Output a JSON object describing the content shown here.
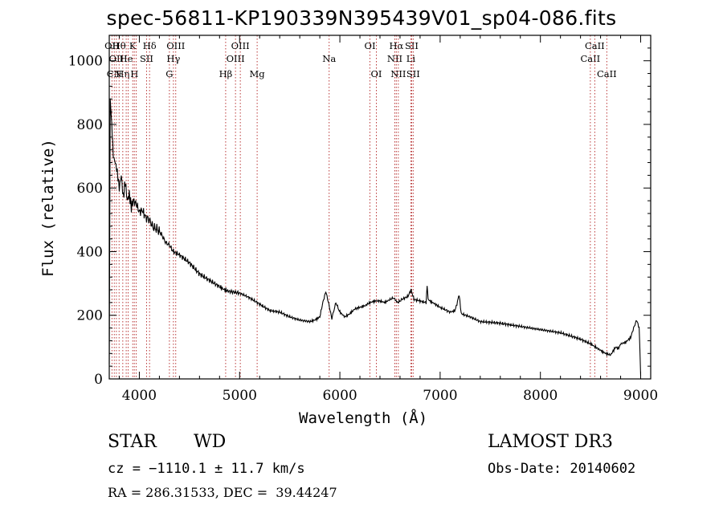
{
  "chart_data": {
    "type": "line",
    "title": "spec-56811-KP190339N395439V01_sp04-086.fits",
    "xlabel": "Wavelength (Å)",
    "ylabel": "Flux (relative)",
    "xlim": [
      3700,
      9100
    ],
    "ylim": [
      0,
      1080
    ],
    "xticks": [
      4000,
      5000,
      6000,
      7000,
      8000,
      9000
    ],
    "yticks": [
      0,
      200,
      400,
      600,
      800,
      1000
    ],
    "series": [
      {
        "name": "spectrum",
        "x": [
          3700,
          3710,
          3720,
          3730,
          3740,
          3760,
          3780,
          3800,
          3820,
          3840,
          3860,
          3880,
          3900,
          3920,
          3940,
          3970,
          4000,
          4030,
          4060,
          4100,
          4140,
          4180,
          4220,
          4260,
          4300,
          4340,
          4400,
          4500,
          4600,
          4700,
          4800,
          4850,
          4900,
          5000,
          5100,
          5200,
          5300,
          5400,
          5500,
          5600,
          5700,
          5750,
          5800,
          5830,
          5860,
          5890,
          5920,
          5960,
          6000,
          6050,
          6100,
          6150,
          6200,
          6250,
          6300,
          6350,
          6400,
          6450,
          6500,
          6540,
          6560,
          6580,
          6620,
          6680,
          6710,
          6740,
          6800,
          6860,
          6870,
          6880,
          6900,
          6950,
          7000,
          7100,
          7150,
          7190,
          7210,
          7300,
          7400,
          7500,
          7600,
          7700,
          7800,
          7900,
          8000,
          8100,
          8200,
          8300,
          8400,
          8500,
          8550,
          8600,
          8650,
          8700,
          8750,
          8780,
          8800,
          8850,
          8900,
          8930,
          8960,
          8985,
          9000
        ],
        "y": [
          50,
          880,
          820,
          760,
          700,
          680,
          650,
          600,
          640,
          570,
          620,
          560,
          580,
          540,
          560,
          550,
          525,
          530,
          510,
          500,
          475,
          470,
          455,
          430,
          420,
          400,
          390,
          365,
          330,
          310,
          290,
          280,
          275,
          270,
          255,
          235,
          215,
          210,
          195,
          185,
          180,
          185,
          195,
          240,
          275,
          235,
          190,
          240,
          210,
          195,
          205,
          220,
          225,
          230,
          240,
          245,
          245,
          240,
          250,
          255,
          245,
          240,
          250,
          260,
          280,
          250,
          245,
          240,
          295,
          250,
          245,
          235,
          225,
          210,
          215,
          265,
          205,
          195,
          180,
          178,
          175,
          170,
          165,
          160,
          155,
          150,
          145,
          135,
          125,
          110,
          100,
          90,
          80,
          75,
          100,
          95,
          110,
          115,
          130,
          160,
          185,
          160,
          10
        ]
      }
    ],
    "line_colors": {
      "spectrum": "#000000",
      "lines": "#b22222"
    },
    "spectral_lines": [
      {
        "wl": 3727,
        "top": "OII",
        "mid": "",
        "low": ""
      },
      {
        "wl": 3750,
        "top": "",
        "mid": "",
        "low": "CN"
      },
      {
        "wl": 3771,
        "top": "",
        "mid": "OII",
        "low": ""
      },
      {
        "wl": 3798,
        "top": "Hθ",
        "mid": "",
        "low": ""
      },
      {
        "wl": 3835,
        "top": "",
        "mid": "",
        "low": "Hη"
      },
      {
        "wl": 3869,
        "top": "",
        "mid": "He",
        "low": ""
      },
      {
        "wl": 3889,
        "top": "",
        "mid": "",
        "low": ""
      },
      {
        "wl": 3934,
        "top": "K",
        "mid": "",
        "low": ""
      },
      {
        "wl": 3950,
        "top": "",
        "mid": "",
        "low": "H"
      },
      {
        "wl": 3969,
        "top": "",
        "mid": "",
        "low": ""
      },
      {
        "wl": 4072,
        "top": "",
        "mid": "SII",
        "low": ""
      },
      {
        "wl": 4102,
        "top": "Hδ",
        "mid": "",
        "low": ""
      },
      {
        "wl": 4300,
        "top": "",
        "mid": "",
        "low": "G"
      },
      {
        "wl": 4340,
        "top": "",
        "mid": "Hγ",
        "low": ""
      },
      {
        "wl": 4363,
        "top": "OIII",
        "mid": "",
        "low": ""
      },
      {
        "wl": 4861,
        "top": "",
        "mid": "",
        "low": "Hβ"
      },
      {
        "wl": 4959,
        "top": "",
        "mid": "OIII",
        "low": ""
      },
      {
        "wl": 5007,
        "top": "OIII",
        "mid": "",
        "low": ""
      },
      {
        "wl": 5175,
        "top": "",
        "mid": "",
        "low": "Mg"
      },
      {
        "wl": 5893,
        "top": "",
        "mid": "Na",
        "low": ""
      },
      {
        "wl": 6300,
        "top": "OI",
        "mid": "",
        "low": ""
      },
      {
        "wl": 6364,
        "top": "",
        "mid": "",
        "low": "OI"
      },
      {
        "wl": 6548,
        "top": "",
        "mid": "NII",
        "low": ""
      },
      {
        "wl": 6563,
        "top": "Hα",
        "mid": "",
        "low": ""
      },
      {
        "wl": 6583,
        "top": "",
        "mid": "",
        "low": "NII"
      },
      {
        "wl": 6708,
        "top": "",
        "mid": "Li",
        "low": ""
      },
      {
        "wl": 6716,
        "top": "SII",
        "mid": "",
        "low": ""
      },
      {
        "wl": 6731,
        "top": "",
        "mid": "",
        "low": "SII"
      },
      {
        "wl": 8498,
        "top": "",
        "mid": "CaII",
        "low": ""
      },
      {
        "wl": 8542,
        "top": "CaII",
        "mid": "",
        "low": ""
      },
      {
        "wl": 8662,
        "top": "",
        "mid": "",
        "low": "CaII"
      }
    ]
  },
  "info": {
    "class": "STAR",
    "subclass": "WD",
    "survey": "LAMOST DR3",
    "redshift": "cz = −1110.1 ± 11.7 km/s",
    "obs_date": "Obs-Date: 20140602",
    "coords": "RA = 286.31533, DEC =  39.44247"
  }
}
